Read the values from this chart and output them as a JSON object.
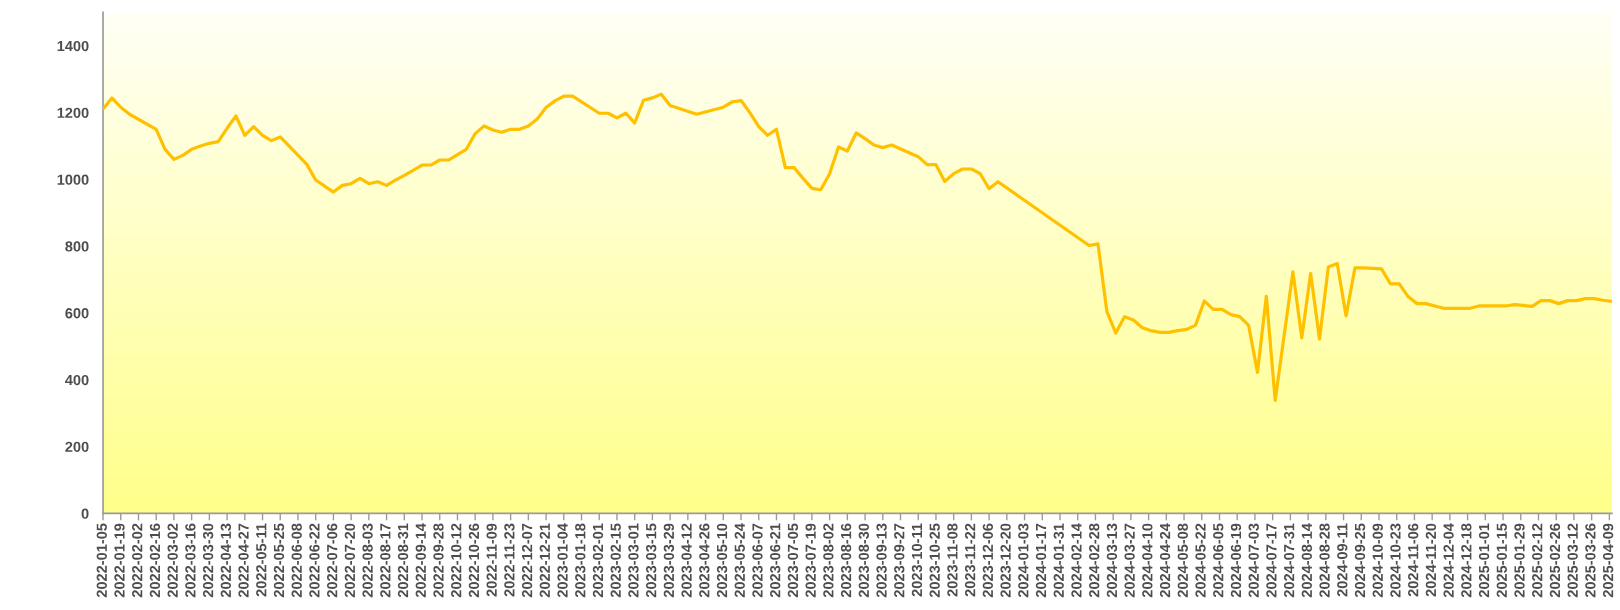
{
  "chart_data": {
    "type": "line",
    "x": [
      "2022-01-05",
      "2022-01-12",
      "2022-01-19",
      "2022-01-26",
      "2022-02-16",
      "2022-02-23",
      "2022-03-02",
      "2022-03-09",
      "2022-03-16",
      "2022-03-23",
      "2022-03-30",
      "2022-04-06",
      "2022-04-13",
      "2022-04-20",
      "2022-04-27",
      "2022-05-04",
      "2022-05-11",
      "2022-05-18",
      "2022-05-25",
      "2022-06-15",
      "2022-06-22",
      "2022-07-06",
      "2022-07-13",
      "2022-07-20",
      "2022-07-27",
      "2022-08-03",
      "2022-08-10",
      "2022-08-17",
      "2022-08-24",
      "2022-08-31",
      "2022-09-07",
      "2022-09-14",
      "2022-09-21",
      "2022-09-28",
      "2022-10-05",
      "2022-10-12",
      "2022-10-19",
      "2022-10-26",
      "2022-11-02",
      "2022-11-09",
      "2022-11-16",
      "2022-11-23",
      "2022-11-30",
      "2022-12-07",
      "2022-12-14",
      "2022-12-21",
      "2022-12-28",
      "2023-01-04",
      "2023-01-11",
      "2023-02-01",
      "2023-02-08",
      "2023-02-15",
      "2023-02-22",
      "2023-03-01",
      "2023-03-08",
      "2023-03-15",
      "2023-03-22",
      "2023-03-29",
      "2023-04-19",
      "2023-05-10",
      "2023-05-17",
      "2023-05-24",
      "2023-05-31",
      "2023-06-07",
      "2023-06-14",
      "2023-06-21",
      "2023-06-28",
      "2023-07-05",
      "2023-07-12",
      "2023-07-19",
      "2023-07-26",
      "2023-08-02",
      "2023-08-09",
      "2023-08-16",
      "2023-08-23",
      "2023-08-30",
      "2023-09-06",
      "2023-09-13",
      "2023-09-20",
      "2023-10-11",
      "2023-10-18",
      "2023-10-25",
      "2023-11-01",
      "2023-11-08",
      "2023-11-15",
      "2023-11-22",
      "2023-11-29",
      "2023-12-06",
      "2023-12-13",
      "2024-02-23",
      "2024-03-01",
      "2024-03-08",
      "2024-03-15",
      "2024-03-22",
      "2024-03-29",
      "2024-04-05",
      "2024-04-12",
      "2024-04-19",
      "2024-04-26",
      "2024-05-03",
      "2024-05-10",
      "2024-05-17",
      "2024-05-24",
      "2024-05-31",
      "2024-06-07",
      "2024-06-14",
      "2024-06-21",
      "2024-06-28",
      "2024-07-05",
      "2024-07-12",
      "2024-07-19",
      "2024-08-02",
      "2024-08-09",
      "2024-08-16",
      "2024-08-23",
      "2024-08-30",
      "2024-09-06",
      "2024-09-13",
      "2024-09-20",
      "2024-09-27",
      "2024-10-11",
      "2024-10-18",
      "2024-10-25",
      "2024-11-01",
      "2024-11-08",
      "2024-11-15",
      "2024-11-29",
      "2024-12-20",
      "2024-12-27",
      "2025-01-17",
      "2025-01-24",
      "2025-02-07",
      "2025-02-14",
      "2025-02-21",
      "2025-02-28",
      "2025-03-07",
      "2025-03-14",
      "2025-03-21",
      "2025-03-28",
      "2025-04-04",
      "2025-04-11"
    ],
    "series": [
      {
        "color": "#ffc000",
        "values": [
          1211,
          1244,
          1216,
          1195,
          1150,
          1090,
          1060,
          1072,
          1090,
          1100,
          1108,
          1113,
          1153,
          1190,
          1132,
          1158,
          1132,
          1116,
          1127,
          1045,
          998,
          962,
          982,
          987,
          1003,
          987,
          993,
          982,
          998,
          1012,
          1027,
          1043,
          1043,
          1058,
          1058,
          1074,
          1090,
          1137,
          1160,
          1148,
          1141,
          1150,
          1150,
          1160,
          1181,
          1215,
          1235,
          1249,
          1249,
          1198,
          1198,
          1184,
          1198,
          1169,
          1237,
          1244,
          1255,
          1221,
          1195,
          1216,
          1232,
          1236,
          1200,
          1158,
          1132,
          1150,
          1035,
          1035,
          1003,
          973,
          969,
          1017,
          1097,
          1085,
          1139,
          1122,
          1103,
          1095,
          1103,
          1068,
          1044,
          1044,
          994,
          1017,
          1031,
          1031,
          1017,
          972,
          993,
          802,
          807,
          605,
          540,
          589,
          579,
          556,
          547,
          542,
          542,
          547,
          551,
          563,
          636,
          611,
          611,
          595,
          589,
          563,
          422,
          650,
          338,
          723,
          526,
          718,
          522,
          738,
          748,
          591,
          735,
          735,
          732,
          687,
          687,
          649,
          628,
          628,
          614,
          614,
          621,
          621,
          625,
          620,
          637,
          637,
          628,
          637,
          637,
          643,
          643,
          638,
          635
        ]
      }
    ],
    "xlim": [
      "2022-01-05",
      "2025-04-11"
    ],
    "xticks": [
      "2022-01-05",
      "2022-01-19",
      "2022-02-02",
      "2022-02-16",
      "2022-03-02",
      "2022-03-16",
      "2022-03-30",
      "2022-04-13",
      "2022-04-27",
      "2022-05-11",
      "2022-05-25",
      "2022-06-08",
      "2022-06-22",
      "2022-07-06",
      "2022-07-20",
      "2022-08-03",
      "2022-08-17",
      "2022-08-31",
      "2022-09-14",
      "2022-09-28",
      "2022-10-12",
      "2022-10-26",
      "2022-11-09",
      "2022-11-23",
      "2022-12-07",
      "2022-12-21",
      "2023-01-04",
      "2023-01-18",
      "2023-02-01",
      "2023-02-15",
      "2023-03-01",
      "2023-03-15",
      "2023-03-29",
      "2023-04-12",
      "2023-04-26",
      "2023-05-10",
      "2023-05-24",
      "2023-06-07",
      "2023-06-21",
      "2023-07-05",
      "2023-07-19",
      "2023-08-02",
      "2023-08-16",
      "2023-08-30",
      "2023-09-13",
      "2023-09-27",
      "2023-10-11",
      "2023-10-25",
      "2023-11-08",
      "2023-11-22",
      "2023-12-06",
      "2023-12-20",
      "2024-01-03",
      "2024-01-17",
      "2024-01-31",
      "2024-02-14",
      "2024-02-28",
      "2024-03-13",
      "2024-03-27",
      "2024-04-10",
      "2024-04-24",
      "2024-05-08",
      "2024-05-22",
      "2024-06-05",
      "2024-06-19",
      "2024-07-03",
      "2024-07-17",
      "2024-07-31",
      "2024-08-14",
      "2024-08-28",
      "2024-09-11",
      "2024-09-25",
      "2024-10-09",
      "2024-10-23",
      "2024-11-06",
      "2024-11-20",
      "2024-12-04",
      "2024-12-18",
      "2025-01-01",
      "2025-01-15",
      "2025-01-29",
      "2025-02-12",
      "2025-02-26",
      "2025-03-12",
      "2025-03-26",
      "2025-04-09"
    ],
    "ylim": [
      0,
      1500
    ],
    "yticks": [
      0,
      200,
      400,
      600,
      800,
      1000,
      1200,
      1400
    ]
  }
}
